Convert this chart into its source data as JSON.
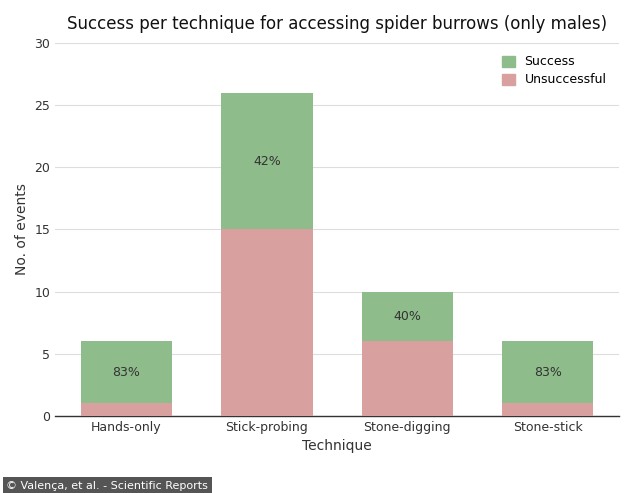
{
  "categories": [
    "Hands-only",
    "Stick-probing",
    "Stone-digging",
    "Stone-stick"
  ],
  "unsuccessful": [
    1,
    15,
    6,
    1
  ],
  "success": [
    5,
    11,
    4,
    5
  ],
  "success_pct_labels": [
    "83%",
    "42%",
    "40%",
    "83%"
  ],
  "color_success": "#8fbc8b",
  "color_unsuccessful": "#d9a0a0",
  "title": "Success per technique for accessing spider burrows (only males)",
  "xlabel": "Technique",
  "ylabel": "No. of events",
  "ylim": [
    0,
    30
  ],
  "yticks": [
    0,
    5,
    10,
    15,
    20,
    25,
    30
  ],
  "legend_labels": [
    "Success",
    "Unsuccessful"
  ],
  "caption": "© Valença, et al. - Scientific Reports",
  "background_color": "#ffffff",
  "title_fontsize": 12,
  "axis_fontsize": 10,
  "tick_fontsize": 9,
  "caption_fontsize": 8,
  "bar_width": 0.65
}
